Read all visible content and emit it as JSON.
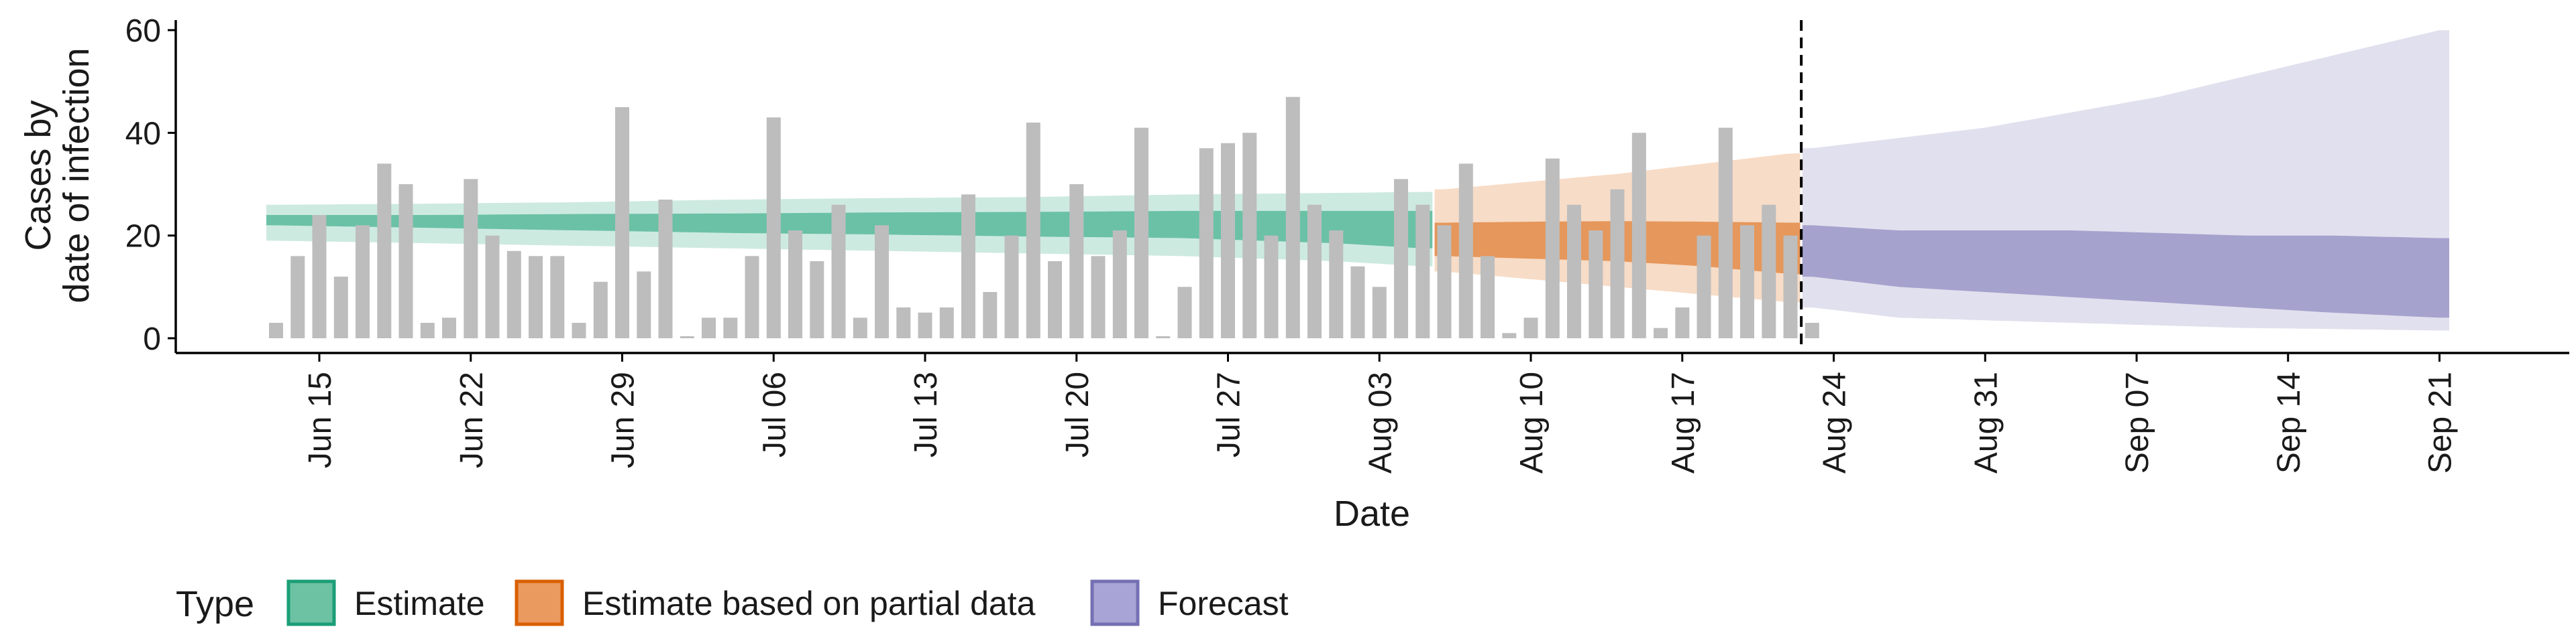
{
  "chart_data": {
    "type": "bar",
    "title": "",
    "xlabel": "Date",
    "ylabel_line1": "Cases by",
    "ylabel_line2": "date of infection",
    "ylim": [
      0,
      60
    ],
    "yticks": [
      0,
      20,
      40,
      60
    ],
    "x_range": [
      "2020-06-08",
      "2020-09-28"
    ],
    "grid": false,
    "xticks": [
      {
        "date": "2020-06-15",
        "label": "Jun 15"
      },
      {
        "date": "2020-06-22",
        "label": "Jun 22"
      },
      {
        "date": "2020-06-29",
        "label": "Jun 29"
      },
      {
        "date": "2020-07-06",
        "label": "Jul 06"
      },
      {
        "date": "2020-07-13",
        "label": "Jul 13"
      },
      {
        "date": "2020-07-20",
        "label": "Jul 20"
      },
      {
        "date": "2020-07-27",
        "label": "Jul 27"
      },
      {
        "date": "2020-08-03",
        "label": "Aug 03"
      },
      {
        "date": "2020-08-10",
        "label": "Aug 10"
      },
      {
        "date": "2020-08-17",
        "label": "Aug 17"
      },
      {
        "date": "2020-08-24",
        "label": "Aug 24"
      },
      {
        "date": "2020-08-31",
        "label": "Aug 31"
      },
      {
        "date": "2020-09-07",
        "label": "Sep 07"
      },
      {
        "date": "2020-09-14",
        "label": "Sep 14"
      },
      {
        "date": "2020-09-21",
        "label": "Sep 21"
      }
    ],
    "bars": {
      "start_date": "2020-06-13",
      "values": [
        3,
        16,
        24,
        12,
        22,
        34,
        30,
        3,
        4,
        31,
        20,
        17,
        16,
        16,
        3,
        11,
        45,
        13,
        27,
        0,
        4,
        4,
        16,
        43,
        21,
        15,
        26,
        4,
        22,
        6,
        5,
        6,
        28,
        9,
        20,
        42,
        15,
        30,
        16,
        21,
        41,
        0,
        10,
        37,
        38,
        40,
        20,
        47,
        26,
        21,
        14,
        10,
        31,
        26,
        22,
        34,
        16,
        1,
        4,
        35,
        26,
        21,
        29,
        40,
        2,
        6,
        20,
        41,
        22,
        26,
        20,
        3
      ]
    },
    "forecast_cutoff_date": "2020-08-23",
    "series": [
      {
        "name": "Estimate",
        "color": "#1b9e77",
        "start_date": "2020-06-13",
        "end_date": "2020-08-05",
        "dates": [
          "2020-06-13",
          "2020-06-20",
          "2020-06-27",
          "2020-07-04",
          "2020-07-11",
          "2020-07-18",
          "2020-07-25",
          "2020-08-01",
          "2020-08-05"
        ],
        "median": [
          23,
          22.8,
          22.6,
          22.5,
          22.3,
          22.2,
          22.0,
          21.5,
          21.0
        ],
        "inner_lower": [
          22,
          21.5,
          21,
          20.5,
          20.2,
          19.8,
          19.5,
          18.5,
          17.5
        ],
        "inner_upper": [
          24,
          24.0,
          24.2,
          24.3,
          24.5,
          24.6,
          24.8,
          24.8,
          24.8
        ],
        "outer_lower": [
          19,
          18.5,
          18,
          17.5,
          17.0,
          16.5,
          16.0,
          15.0,
          14.0
        ],
        "outer_upper": [
          26,
          26.2,
          26.5,
          27.0,
          27.3,
          27.5,
          28.0,
          28.3,
          28.5
        ]
      },
      {
        "name": "Estimate based on partial data",
        "color": "#d95f02",
        "start_date": "2020-08-06",
        "end_date": "2020-08-22",
        "dates": [
          "2020-08-06",
          "2020-08-10",
          "2020-08-14",
          "2020-08-18",
          "2020-08-22"
        ],
        "median": [
          21,
          20.8,
          20.5,
          20.0,
          19.5
        ],
        "inner_lower": [
          16,
          15.5,
          15.0,
          14.0,
          12.5
        ],
        "inner_upper": [
          22.5,
          22.7,
          22.8,
          22.7,
          22.5
        ],
        "outer_lower": [
          13,
          11.5,
          10.0,
          8.5,
          7.0
        ],
        "outer_upper": [
          29,
          30.5,
          32.0,
          34.0,
          36.0
        ]
      },
      {
        "name": "Forecast",
        "color": "#7570b3",
        "start_date": "2020-08-23",
        "end_date": "2020-09-21",
        "dates": [
          "2020-08-23",
          "2020-08-27",
          "2020-08-31",
          "2020-09-04",
          "2020-09-08",
          "2020-09-12",
          "2020-09-16",
          "2020-09-21"
        ],
        "inner_lower": [
          12,
          10,
          9,
          8,
          7,
          6,
          5,
          4
        ],
        "inner_upper": [
          22,
          21,
          21,
          21,
          20.5,
          20,
          20,
          19.5
        ],
        "outer_lower": [
          6,
          4,
          3.5,
          3,
          2.5,
          2,
          1.8,
          1.5
        ],
        "outer_upper": [
          37,
          39,
          41,
          44,
          47,
          51,
          55,
          60
        ]
      }
    ],
    "legend": {
      "position": "bottom-left",
      "title": "Type",
      "items": [
        {
          "label": "Estimate",
          "color": "#1b9e77"
        },
        {
          "label": "Estimate based on partial data",
          "color": "#d95f02"
        },
        {
          "label": "Forecast",
          "color": "#7570b3"
        }
      ]
    }
  }
}
